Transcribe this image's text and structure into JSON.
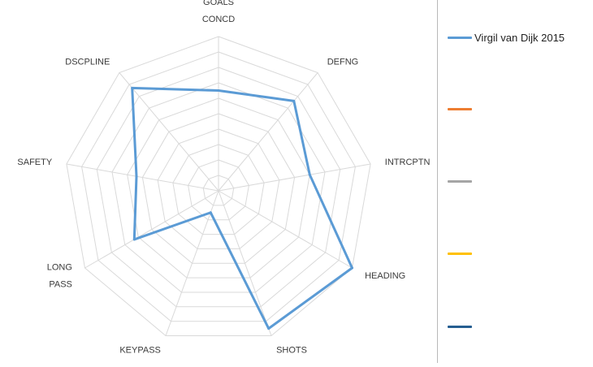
{
  "chart_data": {
    "type": "radar",
    "axes": [
      "GOALS CONCD",
      "DEFNG",
      "INTRCPTN",
      "HEADING",
      "SHOTS",
      "KEYPASS",
      "LONG PASS",
      "SAFETY",
      "DSCPLINE"
    ],
    "axis_label_lines": [
      [
        "GOALS",
        "CONCD"
      ],
      [
        "DEFNG"
      ],
      [
        "INTRCPTN"
      ],
      [
        "HEADING"
      ],
      [
        "SHOTS"
      ],
      [
        "KEYPASS"
      ],
      [
        "LONG",
        "PASS"
      ],
      [
        "SAFETY"
      ],
      [
        "DSCPLINE"
      ]
    ],
    "rmax": 10,
    "ring_count": 10,
    "series": [
      {
        "name": "Virgil van Dijk 2015",
        "color": "#5b9bd5",
        "values": [
          6.5,
          7.6,
          6.0,
          10.0,
          9.5,
          1.5,
          6.3,
          5.4,
          8.7
        ]
      }
    ],
    "grid": true
  },
  "legend": {
    "items": [
      {
        "label": "Virgil van Dijk 2015",
        "color": "#5b9bd5"
      },
      {
        "label": "",
        "color": "#ed7d31"
      },
      {
        "label": "",
        "color": "#a5a5a5"
      },
      {
        "label": "",
        "color": "#ffc000"
      },
      {
        "label": "",
        "color": "#255e91"
      }
    ]
  }
}
